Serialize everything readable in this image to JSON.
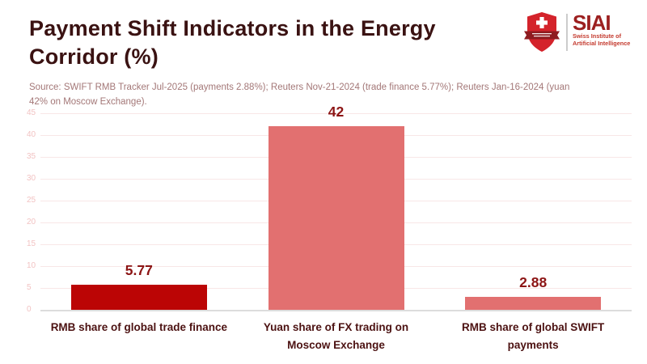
{
  "page": {
    "title": "Payment Shift Indicators in the Energy\nCorridor (%)",
    "source": "Source: SWIFT RMB Tracker Jul-2025 (payments 2.88%); Reuters Nov-21-2024 (trade finance 5.77%); Reuters Jan-16-2024 (yuan\n42% on Moscow Exchange)."
  },
  "logo": {
    "acronym": "SIAI",
    "org_line1": "Swiss Institute of",
    "org_line2": "Artificial Intelligence",
    "shield_icon": "swiss-shield-icon"
  },
  "chart_data": {
    "type": "bar",
    "title": "Payment Shift Indicators in the Energy Corridor (%)",
    "categories": [
      "RMB share of global trade finance",
      "Yuan share of FX trading on Moscow Exchange",
      "RMB share of global SWIFT payments"
    ],
    "values": [
      5.77,
      42,
      2.88
    ],
    "value_labels": [
      "5.77",
      "42",
      "2.88"
    ],
    "bar_colors": [
      "#bb0505",
      "#e27070",
      "#e27070"
    ],
    "xlabel": "",
    "ylabel": "",
    "ylim": [
      0,
      45
    ],
    "yticks": [
      0,
      5,
      10,
      15,
      20,
      25,
      30,
      35,
      40,
      45
    ],
    "grid": true,
    "legend": false
  },
  "colors": {
    "background": "#ffffff",
    "accent_dark_red": "#bb0505",
    "accent_salmon": "#e27070",
    "title_text": "#3a1212",
    "category_text": "#4c1212",
    "value_text": "#8c1414",
    "source_text": "#a37777",
    "tick_text": "#f2c3c3",
    "gridline": "#f8e7e7",
    "baseline": "#dcdcdc",
    "logo_red": "#d4232b",
    "logo_banner": "#8e1b20",
    "logo_text": "#9c1f1f",
    "logo_subtext": "#c43a2e"
  }
}
